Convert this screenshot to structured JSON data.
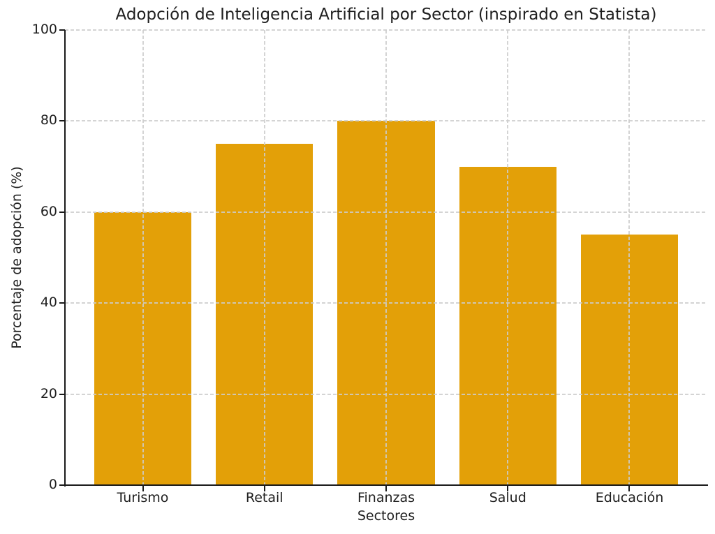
{
  "chart_data": {
    "type": "bar",
    "title": "Adopción de Inteligencia Artificial por Sector (inspirado en Statista)",
    "xlabel": "Sectores",
    "ylabel": "Porcentaje de adopción (%)",
    "categories": [
      "Turismo",
      "Retail",
      "Finanzas",
      "Salud",
      "Educación"
    ],
    "values": [
      60,
      75,
      80,
      70,
      55
    ],
    "ylim": [
      0,
      100
    ],
    "yticks": [
      0,
      20,
      40,
      60,
      80,
      100
    ],
    "bar_color": "#E3A008",
    "text_color": "#1f1f1f",
    "grid_color": "#CDCDCD",
    "grid_style": "dashed, both axes, drawn over bars",
    "legend": "none",
    "spines": "left and bottom only"
  }
}
